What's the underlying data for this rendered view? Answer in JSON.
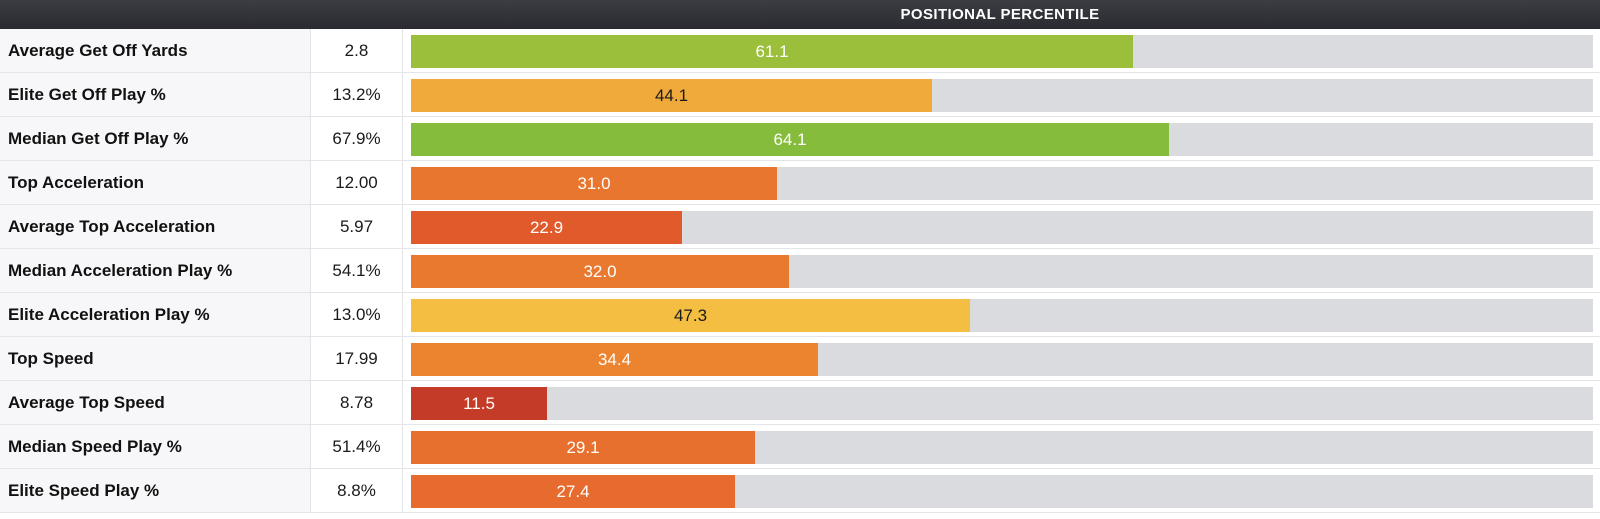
{
  "header": {
    "title": "POSITIONAL PERCENTILE"
  },
  "chart_data": {
    "type": "bar",
    "orientation": "horizontal",
    "title": "POSITIONAL PERCENTILE",
    "xlim": [
      0,
      100
    ],
    "categories": [
      "Average Get Off Yards",
      "Elite Get Off Play %",
      "Median Get Off Play %",
      "Top Acceleration",
      "Average Top Acceleration",
      "Median Acceleration Play %",
      "Elite Acceleration Play %",
      "Top Speed",
      "Average Top Speed",
      "Median Speed Play %",
      "Elite Speed Play %"
    ],
    "raw_values": [
      "2.8",
      "13.2%",
      "67.9%",
      "12.00",
      "5.97",
      "54.1%",
      "13.0%",
      "17.99",
      "8.78",
      "51.4%",
      "8.8%"
    ],
    "values": [
      61.1,
      44.1,
      64.1,
      31.0,
      22.9,
      32.0,
      47.3,
      34.4,
      11.5,
      29.1,
      27.4
    ],
    "value_labels": [
      "61.1",
      "44.1",
      "64.1",
      "31.0",
      "22.9",
      "32.0",
      "47.3",
      "34.4",
      "11.5",
      "29.1",
      "27.4"
    ],
    "bar_colors": [
      "#9bbf3a",
      "#f0aa3c",
      "#86bc3b",
      "#e8762f",
      "#e05a2b",
      "#e8792f",
      "#f3be42",
      "#ec832f",
      "#c43c27",
      "#e8702e",
      "#e76a2e"
    ],
    "label_colors": [
      "#ffffff",
      "#1a1a1a",
      "#ffffff",
      "#ffffff",
      "#ffffff",
      "#ffffff",
      "#1a1a1a",
      "#ffffff",
      "#ffffff",
      "#ffffff",
      "#ffffff"
    ]
  }
}
